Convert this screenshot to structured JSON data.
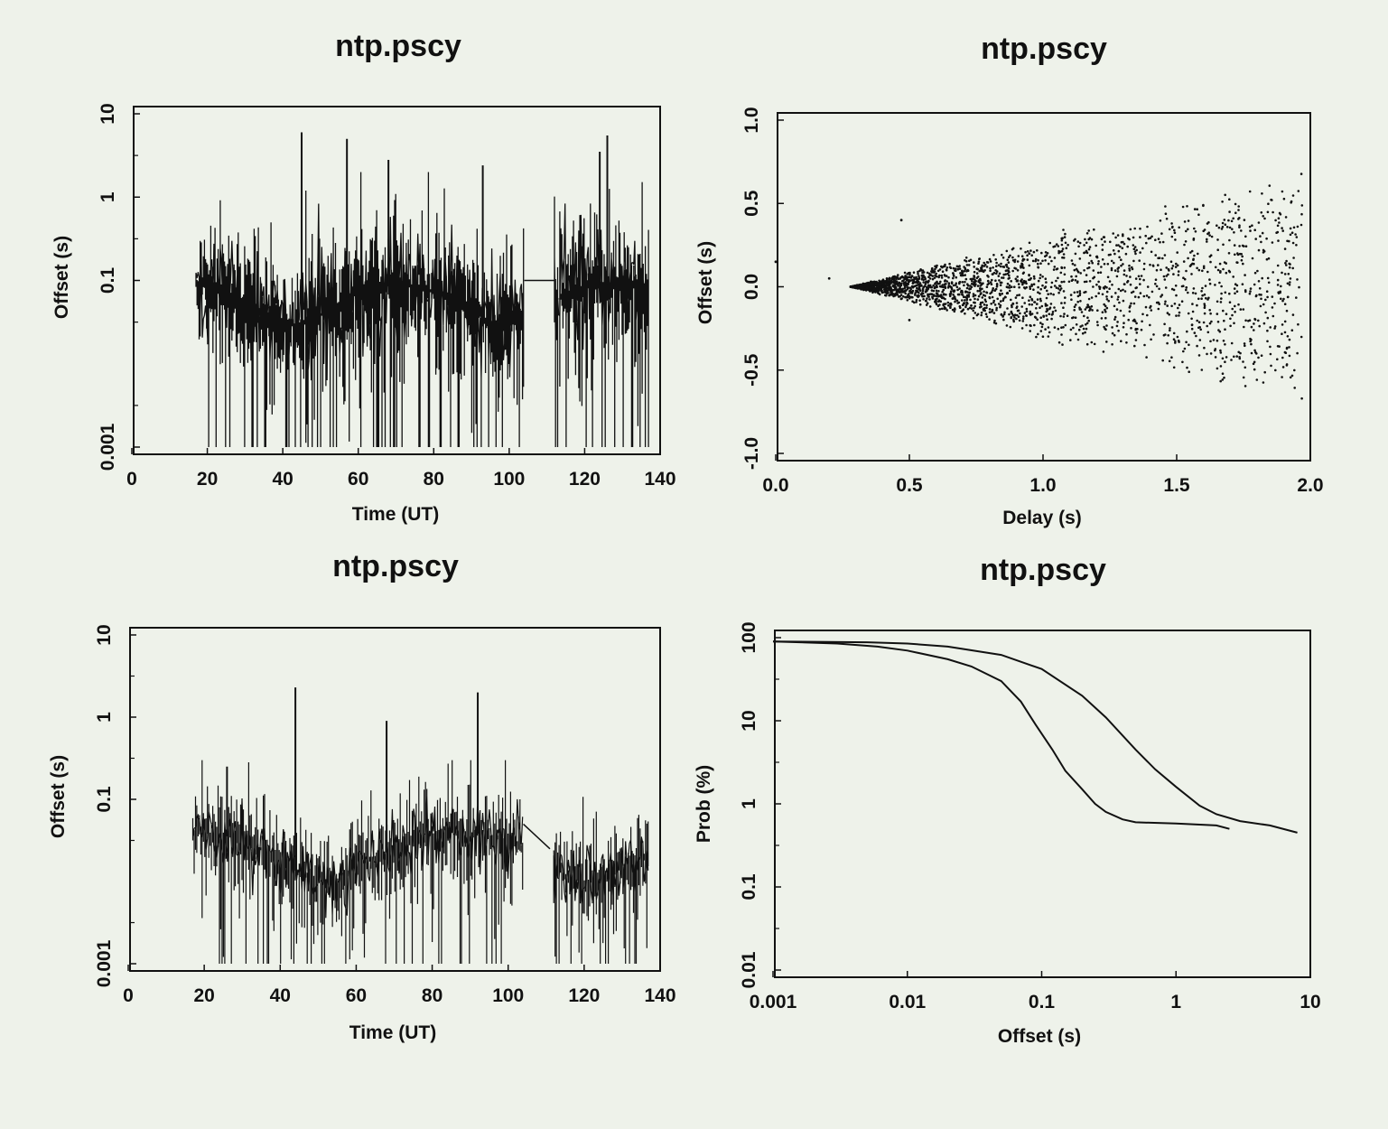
{
  "colors": {
    "paper": "#eef2ea",
    "ink": "#111111"
  },
  "chart_data": [
    {
      "type": "line",
      "title": "ntp.pscy",
      "xlabel": "Time (UT)",
      "ylabel": "Offset (s)",
      "xlim": [
        0,
        140
      ],
      "ylim": [
        0.001,
        10
      ],
      "yscale": "log",
      "xticks": [
        0,
        20,
        40,
        60,
        80,
        100,
        120,
        140
      ],
      "yticks": [
        0.001,
        0.1,
        1,
        10
      ],
      "ytick_labels": [
        "0.001",
        "0.1",
        "1",
        "10"
      ],
      "grid": false,
      "description_values": {
        "segments": [
          [
            17,
            104
          ],
          [
            112,
            137
          ]
        ],
        "gap_fill_value": 0.1,
        "floor": 0.001,
        "spikes": [
          [
            45,
            6
          ],
          [
            57,
            5
          ],
          [
            68,
            2.8
          ],
          [
            93,
            2.4
          ],
          [
            124,
            3.5
          ],
          [
            126,
            5.5
          ]
        ]
      }
    },
    {
      "type": "scatter",
      "title": "ntp.pscy",
      "xlabel": "Delay (s)",
      "ylabel": "Offset (s)",
      "xlim": [
        0.0,
        2.0
      ],
      "ylim": [
        -1.0,
        1.0
      ],
      "xticks": [
        0.0,
        0.5,
        1.0,
        1.5,
        2.0
      ],
      "xtick_labels": [
        "0.0",
        "0.5",
        "1.0",
        "1.5",
        "2.0"
      ],
      "yticks": [
        -1.0,
        -0.5,
        0.0,
        0.5,
        1.0
      ],
      "ytick_labels": [
        "-1.0",
        "-0.5",
        "0.0",
        "0.5",
        "1.0"
      ],
      "grid": false,
      "points_summary": {
        "apex": [
          0.28,
          0.0
        ],
        "envelope_upper": [
          [
            0.28,
            0.0
          ],
          [
            1.0,
            0.35
          ],
          [
            1.5,
            0.6
          ],
          [
            1.9,
            0.8
          ]
        ],
        "envelope_lower": [
          [
            0.28,
            0.0
          ],
          [
            1.0,
            -0.35
          ],
          [
            1.5,
            -0.6
          ],
          [
            1.95,
            -0.8
          ]
        ],
        "outliers": [
          [
            0.0,
            0.15
          ],
          [
            0.2,
            0.05
          ],
          [
            0.47,
            0.4
          ],
          [
            0.5,
            -0.2
          ]
        ]
      }
    },
    {
      "type": "line",
      "title": "ntp.pscy",
      "xlabel": "Time (UT)",
      "ylabel": "Offset (s)",
      "xlim": [
        0,
        140
      ],
      "ylim": [
        0.001,
        10
      ],
      "yscale": "log",
      "xticks": [
        0,
        20,
        40,
        60,
        80,
        100,
        120,
        140
      ],
      "yticks": [
        0.001,
        0.1,
        1,
        10
      ],
      "ytick_labels": [
        "0.001",
        "0.1",
        "1",
        "10"
      ],
      "grid": false,
      "description_values": {
        "segments": [
          [
            17,
            104
          ],
          [
            112,
            137
          ]
        ],
        "gap_line": [
          [
            104,
            0.05
          ],
          [
            111,
            0.025
          ]
        ],
        "baseline": 0.025,
        "floor": 0.001,
        "spikes": [
          [
            26,
            0.25
          ],
          [
            44,
            2.3
          ],
          [
            68,
            0.9
          ],
          [
            92,
            2.0
          ]
        ]
      }
    },
    {
      "type": "line",
      "title": "ntp.pscy",
      "xlabel": "Offset (s)",
      "ylabel": "Prob (%)",
      "xscale": "log",
      "yscale": "log",
      "xlim": [
        0.001,
        10
      ],
      "ylim": [
        0.01,
        100
      ],
      "xticks": [
        0.001,
        0.01,
        0.1,
        1,
        10
      ],
      "xtick_labels": [
        "0.001",
        "0.01",
        "0.1",
        "1",
        "10"
      ],
      "yticks": [
        0.01,
        0.1,
        1,
        10,
        100
      ],
      "ytick_labels": [
        "0.01",
        "0.1",
        "1",
        "10",
        "100"
      ],
      "grid": false,
      "series": [
        {
          "x": [
            0.001,
            0.003,
            0.006,
            0.01,
            0.02,
            0.03,
            0.05,
            0.07,
            0.09,
            0.12,
            0.15,
            0.2,
            0.25,
            0.3,
            0.4,
            0.5,
            1,
            2,
            2.5
          ],
          "y": [
            90,
            85,
            78,
            70,
            55,
            45,
            30,
            17,
            9,
            4.5,
            2.5,
            1.5,
            1,
            0.8,
            0.65,
            0.6,
            0.58,
            0.55,
            0.5
          ]
        },
        {
          "x": [
            0.001,
            0.005,
            0.01,
            0.02,
            0.05,
            0.1,
            0.2,
            0.3,
            0.5,
            0.7,
            1,
            1.5,
            2,
            3,
            5,
            8
          ],
          "y": [
            90,
            88,
            85,
            78,
            62,
            42,
            20,
            11,
            4.5,
            2.6,
            1.6,
            0.95,
            0.75,
            0.62,
            0.55,
            0.45
          ]
        }
      ]
    }
  ]
}
